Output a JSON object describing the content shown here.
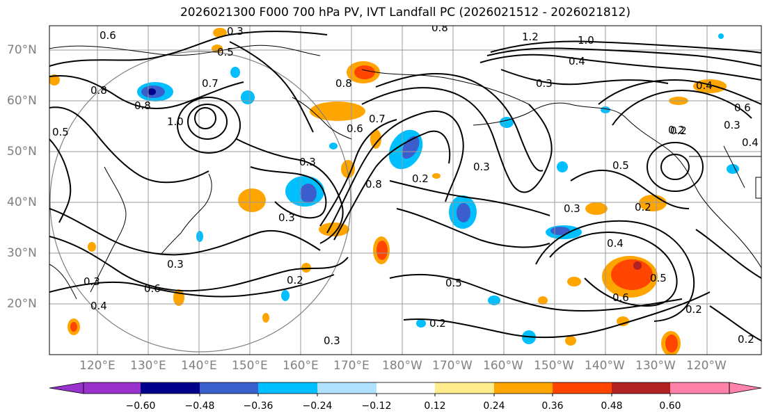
{
  "title": "2026021300 F000 700 hPa PV, IVT Landfall PC (2026021512 - 2026021812)",
  "map": {
    "lat_labels": [
      "70°N",
      "60°N",
      "50°N",
      "40°N",
      "30°N",
      "20°N"
    ],
    "lon_labels": [
      "120°E",
      "130°E",
      "140°E",
      "150°E",
      "160°E",
      "170°E",
      "180°W",
      "170°W",
      "160°W",
      "150°W",
      "140°W",
      "130°W",
      "120°W"
    ],
    "contour_labels": [
      "0.3",
      "0.5",
      "0.6",
      "0.8",
      "1.0",
      "1.2",
      "0.4",
      "0.7",
      "0.3",
      "0.8",
      "0.6",
      "0.3",
      "0.2",
      "0.3",
      "0.5",
      "0.2",
      "0.4",
      "0.3",
      "0.5",
      "0.6",
      "0.2",
      "0.3",
      "0.5",
      "0.4",
      "0.6",
      "0.3",
      "0.2",
      "0.3",
      "0.2"
    ]
  },
  "colorbar": {
    "ticks": [
      "−0.60",
      "−0.48",
      "−0.36",
      "−0.24",
      "−0.12",
      "0.12",
      "0.24",
      "0.36",
      "0.48",
      "0.60"
    ],
    "colors": [
      "#9932cc",
      "#00008b",
      "#3a5fcd",
      "#00bfff",
      "#b0e2ff",
      "#ffffff",
      "#ffec8b",
      "#ffa500",
      "#ff4500",
      "#b22222",
      "#ff82ab"
    ]
  }
}
